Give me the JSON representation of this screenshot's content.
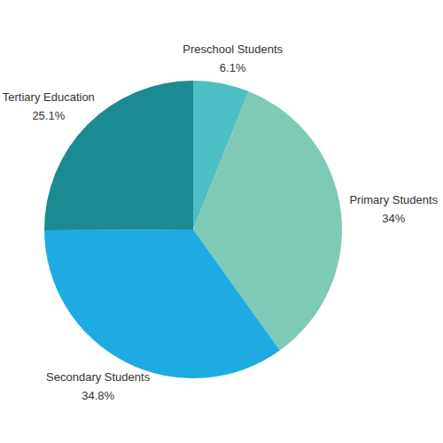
{
  "chart_data": {
    "type": "pie",
    "categories": [
      "Preschool Students",
      "Primary Students",
      "Secondary Students",
      "Tertiary Education"
    ],
    "values": [
      6.1,
      34,
      34.8,
      25.1
    ],
    "value_labels": [
      "6.1%",
      "34%",
      "34.8%",
      "25.1%"
    ],
    "colors": [
      "#4fbfc6",
      "#7ecab6",
      "#1eabe2",
      "#1c8a93"
    ],
    "data_labels": true
  }
}
